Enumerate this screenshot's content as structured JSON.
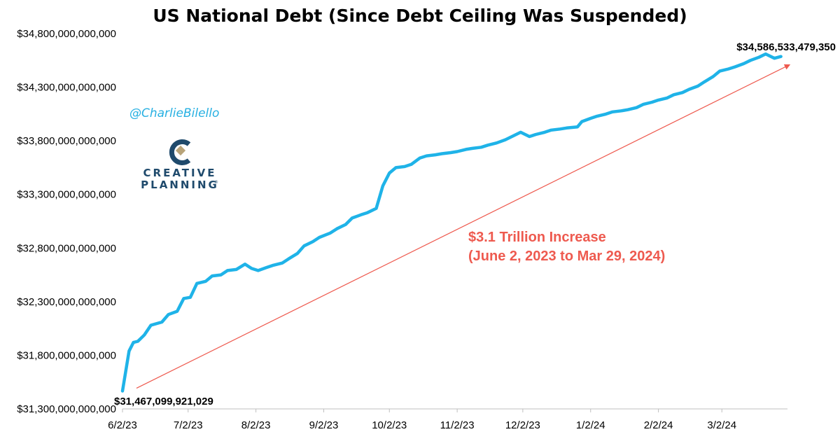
{
  "chart_data": {
    "type": "line",
    "title": "US National Debt (Since Debt Ceiling Was Suspended)",
    "xlabel": "",
    "ylabel": "",
    "y_ticks": [
      "$31,300,000,000,000",
      "$31,800,000,000,000",
      "$32,300,000,000,000",
      "$32,800,000,000,000",
      "$33,300,000,000,000",
      "$33,800,000,000,000",
      "$34,300,000,000,000",
      "$34,800,000,000,000"
    ],
    "ylim": [
      31300000000000,
      34800000000000
    ],
    "x_ticks": [
      "6/2/23",
      "7/2/23",
      "8/2/23",
      "9/2/23",
      "10/2/23",
      "11/2/23",
      "12/2/23",
      "1/2/24",
      "2/2/24",
      "3/2/24"
    ],
    "xlim": [
      "2023-06-02",
      "2024-04-01"
    ],
    "grid": false,
    "series": [
      {
        "color": "#1fb3e8",
        "x": [
          "2023-06-02",
          "2023-06-05",
          "2023-06-07",
          "2023-06-09",
          "2023-06-12",
          "2023-06-15",
          "2023-06-20",
          "2023-06-23",
          "2023-06-27",
          "2023-06-30",
          "2023-07-03",
          "2023-07-06",
          "2023-07-10",
          "2023-07-13",
          "2023-07-17",
          "2023-07-20",
          "2023-07-24",
          "2023-07-28",
          "2023-07-31",
          "2023-08-03",
          "2023-08-07",
          "2023-08-10",
          "2023-08-14",
          "2023-08-17",
          "2023-08-21",
          "2023-08-24",
          "2023-08-28",
          "2023-08-31",
          "2023-09-05",
          "2023-09-08",
          "2023-09-12",
          "2023-09-15",
          "2023-09-19",
          "2023-09-22",
          "2023-09-26",
          "2023-09-29",
          "2023-10-02",
          "2023-10-05",
          "2023-10-09",
          "2023-10-12",
          "2023-10-16",
          "2023-10-19",
          "2023-10-23",
          "2023-10-26",
          "2023-10-30",
          "2023-11-02",
          "2023-11-06",
          "2023-11-09",
          "2023-11-13",
          "2023-11-16",
          "2023-11-20",
          "2023-11-24",
          "2023-11-28",
          "2023-12-01",
          "2023-12-05",
          "2023-12-08",
          "2023-12-12",
          "2023-12-15",
          "2023-12-19",
          "2023-12-22",
          "2023-12-27",
          "2023-12-29",
          "2024-01-02",
          "2024-01-05",
          "2024-01-09",
          "2024-01-12",
          "2024-01-16",
          "2024-01-19",
          "2024-01-23",
          "2024-01-26",
          "2024-01-30",
          "2024-02-02",
          "2024-02-06",
          "2024-02-09",
          "2024-02-13",
          "2024-02-16",
          "2024-02-20",
          "2024-02-23",
          "2024-02-27",
          "2024-03-01",
          "2024-03-05",
          "2024-03-08",
          "2024-03-12",
          "2024-03-15",
          "2024-03-19",
          "2024-03-22",
          "2024-03-26",
          "2024-03-29"
        ],
        "values": [
          31467099921029,
          31840000000000,
          31920000000000,
          31930000000000,
          31990000000000,
          32080000000000,
          32110000000000,
          32180000000000,
          32210000000000,
          32330000000000,
          32340000000000,
          32470000000000,
          32490000000000,
          32540000000000,
          32550000000000,
          32590000000000,
          32600000000000,
          32650000000000,
          32610000000000,
          32590000000000,
          32620000000000,
          32640000000000,
          32660000000000,
          32700000000000,
          32750000000000,
          32820000000000,
          32860000000000,
          32900000000000,
          32940000000000,
          32980000000000,
          33020000000000,
          33080000000000,
          33110000000000,
          33130000000000,
          33170000000000,
          33380000000000,
          33500000000000,
          33550000000000,
          33560000000000,
          33580000000000,
          33640000000000,
          33660000000000,
          33670000000000,
          33680000000000,
          33690000000000,
          33700000000000,
          33720000000000,
          33730000000000,
          33740000000000,
          33760000000000,
          33780000000000,
          33810000000000,
          33850000000000,
          33880000000000,
          33840000000000,
          33860000000000,
          33880000000000,
          33900000000000,
          33910000000000,
          33920000000000,
          33930000000000,
          33980000000000,
          34010000000000,
          34030000000000,
          34050000000000,
          34070000000000,
          34080000000000,
          34090000000000,
          34110000000000,
          34140000000000,
          34160000000000,
          34180000000000,
          34200000000000,
          34230000000000,
          34250000000000,
          34280000000000,
          34310000000000,
          34350000000000,
          34400000000000,
          34450000000000,
          34470000000000,
          34490000000000,
          34520000000000,
          34550000000000,
          34580000000000,
          34610000000000,
          34570000000000,
          34586533479350
        ]
      }
    ],
    "start_label": "$31,467,099,921,029",
    "end_label": "$34,586,533,479,350",
    "annotation": {
      "line1": "$3.1 Trillion Increase",
      "line2": "(June 2, 2023 to Mar 29, 2024)",
      "color": "#ee5a4f"
    }
  },
  "branding": {
    "handle": "@CharlieBilello",
    "logo_line1": "CREATIVE",
    "logo_line2": "PLANNING",
    "logo_mark": "®"
  },
  "colors": {
    "line": "#1fb3e8",
    "arrow": "#ee5a4f",
    "axis": "#bfbfbf",
    "logo": "#1f4a6c",
    "logo_accent": "#b8a47a",
    "handle": "#27b0e2"
  }
}
